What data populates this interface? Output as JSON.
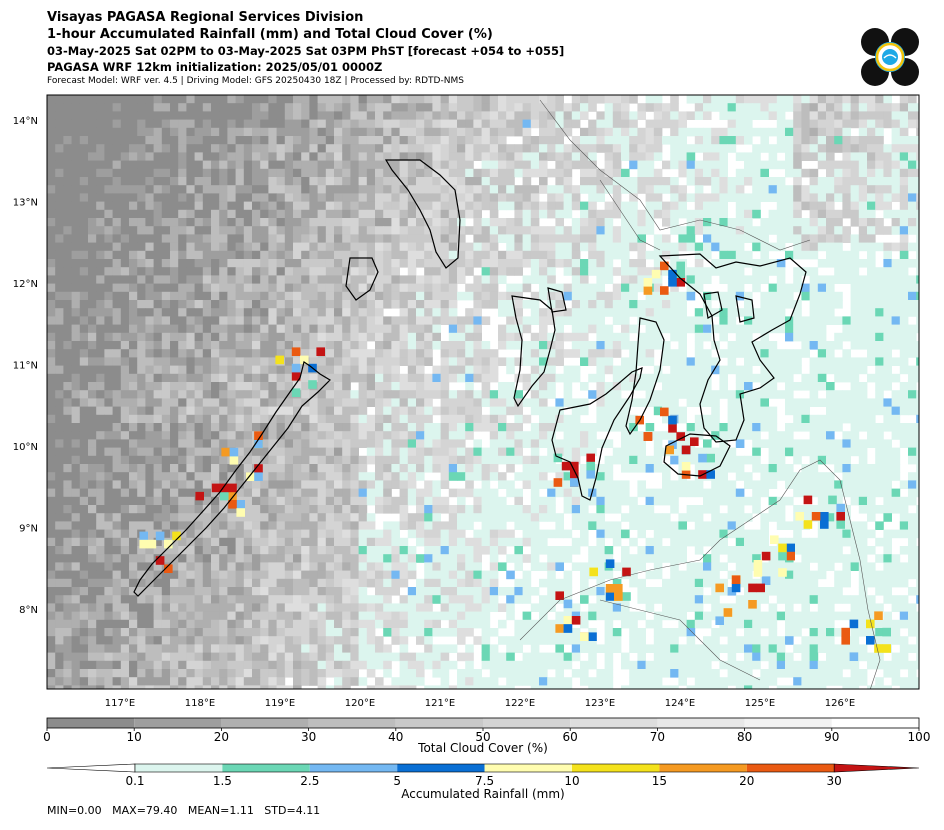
{
  "header": {
    "line1": "Visayas PAGASA Regional Services Division",
    "line2": "1-hour Accumulated Rainfall (mm) and Total Cloud Cover (%)",
    "line3": "03-May-2025 Sat 02PM to 03-May-2025 Sat 03PM PhST [forecast +054 to +055]",
    "line4": "PAGASA WRF 12km initialization: 2025/05/01 0000Z",
    "line5": "Forecast Model: WRF ver. 4.5 | Driving Model: GFS 20250430 18Z | Processed by: RDTD-NMS"
  },
  "map": {
    "lon_labels": [
      "117°E",
      "118°E",
      "119°E",
      "120°E",
      "121°E",
      "122°E",
      "123°E",
      "124°E",
      "125°E",
      "126°E"
    ],
    "lat_labels": [
      "14°N",
      "13°N",
      "12°N",
      "11°N",
      "10°N",
      "9°N",
      "8°N"
    ],
    "colors": {
      "land_outline": "#000000",
      "coast_thin": "#555555"
    }
  },
  "cloud_colorbar": {
    "title": "Total Cloud Cover (%)",
    "ticks": [
      "0",
      "10",
      "20",
      "30",
      "40",
      "50",
      "60",
      "70",
      "80",
      "90",
      "100"
    ],
    "colors": [
      "#8c8c8c",
      "#9e9e9e",
      "#afafaf",
      "#bdbdbd",
      "#c9c9c9",
      "#d4d4d4",
      "#dedede",
      "#e8e8e8",
      "#f2f2f2",
      "#ffffff"
    ]
  },
  "rain_colorbar": {
    "title": "Accumulated Rainfall (mm)",
    "ticks": [
      "0.1",
      "1.5",
      "2.5",
      "5",
      "7.5",
      "10",
      "15",
      "20",
      "30"
    ],
    "colors": [
      "#ffffff",
      "#dcf5ee",
      "#6bd7b5",
      "#74b8f2",
      "#0a6fd4",
      "#fffdb0",
      "#f4e21c",
      "#f59a22",
      "#ea5a12",
      "#c41414"
    ]
  },
  "stats": {
    "text": "MIN=0.00   MAX=79.40   MEAN=1.11   STD=4.11"
  }
}
